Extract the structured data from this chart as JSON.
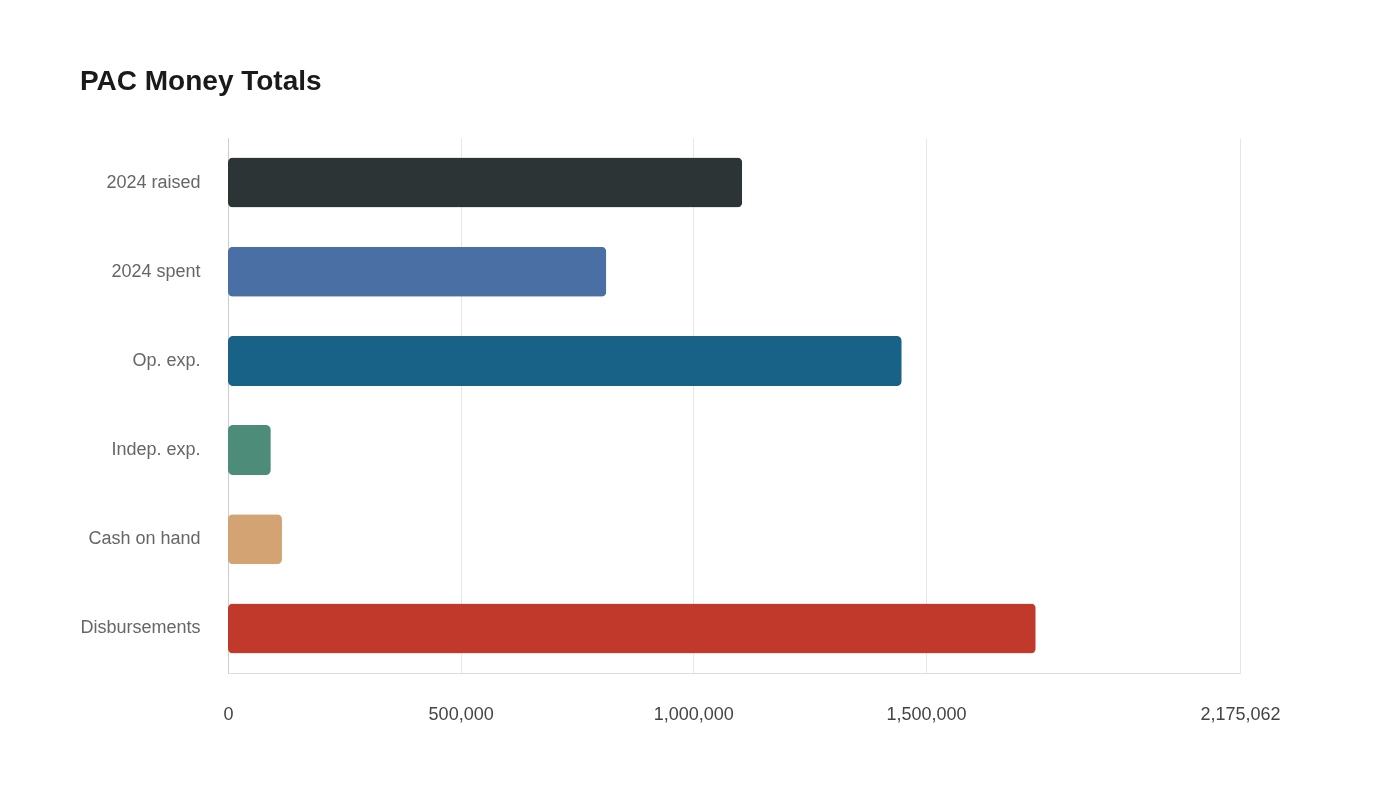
{
  "chart_data": {
    "type": "bar",
    "orientation": "horizontal",
    "title": "PAC Money Totals",
    "categories": [
      "2024 raised",
      "2024 spent",
      "Op. exp.",
      "Indep. exp.",
      "Cash on hand",
      "Disbursements"
    ],
    "values": [
      1105000,
      813000,
      1448000,
      92000,
      116000,
      1736000
    ],
    "colors": [
      "#2d3436",
      "#4a6fa5",
      "#186187",
      "#4e8c7a",
      "#d4a373",
      "#c0392b"
    ],
    "xlim": [
      0,
      2175062
    ],
    "xticks": [
      0,
      {
        "value": 500000,
        "label": "500,000"
      },
      {
        "value": 1000000,
        "label": "1,000,000"
      },
      {
        "value": 1500000,
        "label": "1,500,000"
      },
      {
        "value": 2175062,
        "label": "2,175,062"
      }
    ],
    "grid": "x"
  }
}
